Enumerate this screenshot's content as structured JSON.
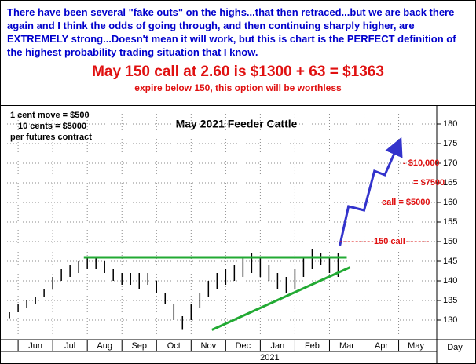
{
  "chart_data": {
    "type": "range",
    "header": "There have been several \"fake outs\" on the highs...that then retraced...but we are back there again and I think the odds of going through, and then continuing sharply higher, are EXTREMELY strong...Doesn't mean it will work, but this  is chart is the PERFECT definition of the highest probability trading situation that I know.",
    "headline": "May 150 call at 2.60 is $1300 + 63 = $1363",
    "subheadline": "expire below 150, this option will be worthless",
    "title": "May 2021 Feeder Cattle",
    "notes": [
      "1 cent move = $500",
      "10 cents = $5000",
      "per futures contract"
    ],
    "x_unit": "Day",
    "year_label": "2021",
    "x": [
      -0.25,
      0,
      0.25,
      0.5,
      0.75,
      1,
      1.25,
      1.5,
      1.75,
      2,
      2.25,
      2.5,
      2.75,
      3,
      3.25,
      3.5,
      3.75,
      4,
      4.25,
      4.5,
      4.75,
      5,
      5.25,
      5.5,
      5.75,
      6,
      6.25,
      6.5,
      6.75,
      7,
      7.25,
      7.5,
      7.75,
      8,
      8.25,
      8.5,
      8.75,
      9,
      9.25
    ],
    "low": [
      130.5,
      132,
      133,
      134,
      136,
      138,
      140,
      141,
      142,
      143,
      143,
      142,
      140,
      139,
      139,
      138,
      139,
      137,
      134,
      130,
      127.5,
      130,
      133,
      136,
      138,
      139,
      140,
      141,
      142,
      141,
      140,
      138,
      137,
      138,
      141,
      143,
      144,
      142,
      141
    ],
    "high": [
      132,
      134,
      135,
      136,
      138,
      141,
      143,
      144,
      145,
      146,
      146,
      145,
      143,
      142,
      142,
      142,
      142,
      140,
      137,
      134,
      131,
      134,
      137,
      140,
      142,
      143,
      144,
      146,
      147,
      146,
      144,
      142,
      141,
      143,
      146,
      148,
      147,
      146,
      147
    ],
    "color": "#000000",
    "xlim": [
      -0.32,
      12.1
    ],
    "xticks": [
      {
        "value": 0,
        "label": "Jun"
      },
      {
        "value": 1,
        "label": "Jul"
      },
      {
        "value": 2,
        "label": "Aug"
      },
      {
        "value": 3,
        "label": "Sep"
      },
      {
        "value": 4,
        "label": "Oct"
      },
      {
        "value": 5,
        "label": "Nov"
      },
      {
        "value": 6,
        "label": "Dec"
      },
      {
        "value": 7,
        "label": "Jan"
      },
      {
        "value": 8,
        "label": "Feb"
      },
      {
        "value": 9,
        "label": "Mar"
      },
      {
        "value": 10,
        "label": "Apr"
      },
      {
        "value": 11,
        "label": "May"
      }
    ],
    "ylim": [
      125,
      183.4
    ],
    "yticks": [
      130,
      135,
      140,
      145,
      150,
      155,
      160,
      165,
      170,
      175,
      180
    ],
    "grid": true,
    "lines": [
      {
        "color": "#22aa33",
        "x": [
          1.9,
          9.5
        ],
        "y": [
          146,
          146
        ]
      },
      {
        "color": "#22aa33",
        "x": [
          5.6,
          9.6
        ],
        "y": [
          127.5,
          143.5
        ]
      },
      {
        "color": "#3333cc",
        "x": [
          9.3,
          9.55,
          10.0,
          10.3,
          10.6,
          11.0
        ],
        "y": [
          149,
          159,
          158,
          168,
          167,
          175
        ]
      }
    ],
    "annotations": [
      {
        "text": "- $10,000",
        "y": 170
      },
      {
        "text": "= $7500",
        "y": 165
      },
      {
        "text": "call = $5000",
        "y": 160
      },
      {
        "text": "150 call",
        "y": 150
      }
    ]
  }
}
